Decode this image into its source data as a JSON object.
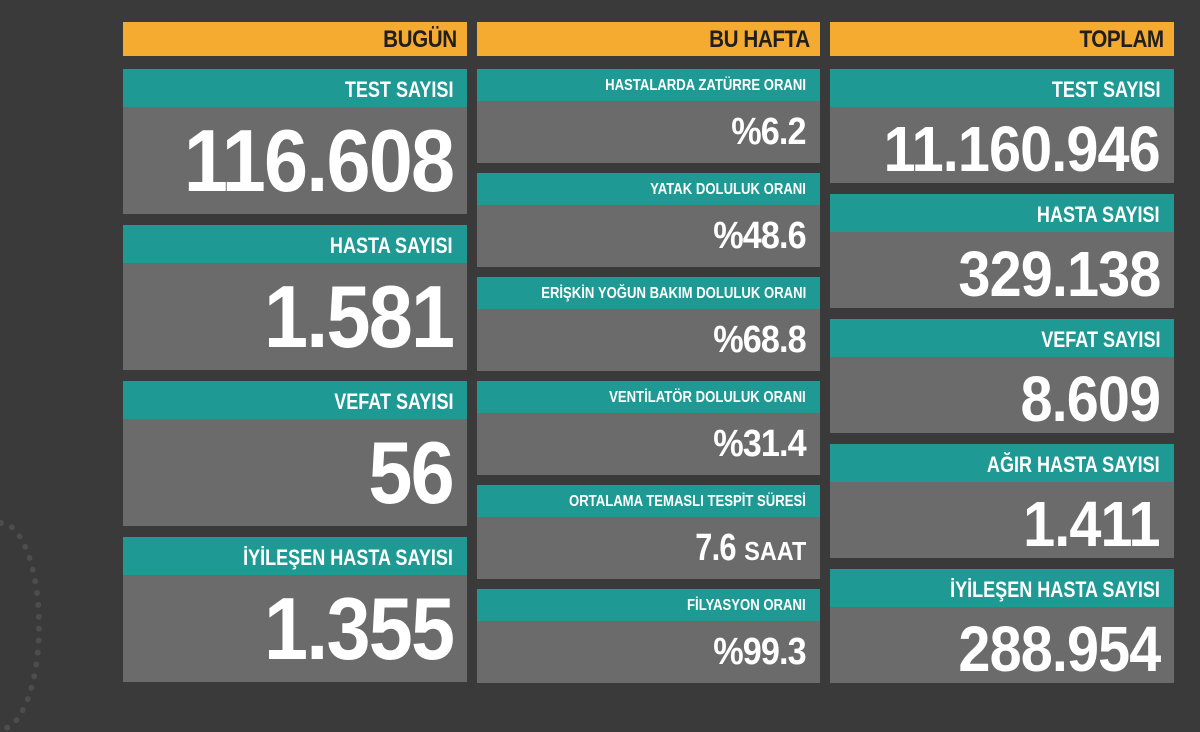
{
  "columns": {
    "today": {
      "title": "BUGÜN",
      "items": [
        {
          "label": "TEST SAYISI",
          "value": "116.608"
        },
        {
          "label": "HASTA SAYISI",
          "value": "1.581"
        },
        {
          "label": "VEFAT SAYISI",
          "value": "56"
        },
        {
          "label": "İYİLEŞEN HASTA SAYISI",
          "value": "1.355"
        }
      ]
    },
    "this_week": {
      "title": "BU HAFTA",
      "items": [
        {
          "label": "HASTALARDA ZATÜRRE ORANI",
          "value": "%6.2"
        },
        {
          "label": "YATAK DOLULUK ORANI",
          "value": "%48.6"
        },
        {
          "label": "ERİŞKİN YOĞUN BAKIM DOLULUK ORANI",
          "value": "%68.8"
        },
        {
          "label": "VENTİLATÖR DOLULUK ORANI",
          "value": "%31.4"
        },
        {
          "label": "ORTALAMA TEMASLI TESPİT SÜRESİ",
          "value": "7.6",
          "unit": "SAAT"
        },
        {
          "label": "FİLYASYON ORANI",
          "value": "%99.3"
        }
      ]
    },
    "total": {
      "title": "TOPLAM",
      "items": [
        {
          "label": "TEST SAYISI",
          "value": "11.160.946"
        },
        {
          "label": "HASTA SAYISI",
          "value": "329.138"
        },
        {
          "label": "VEFAT SAYISI",
          "value": "8.609"
        },
        {
          "label": "AĞIR HASTA SAYISI",
          "value": "1.411"
        },
        {
          "label": "İYİLEŞEN HASTA SAYISI",
          "value": "288.954"
        }
      ]
    }
  },
  "colors": {
    "background": "#3a3a3a",
    "header": "#f4ab2f",
    "label": "#1e9994",
    "panel": "#6b6b6b"
  }
}
